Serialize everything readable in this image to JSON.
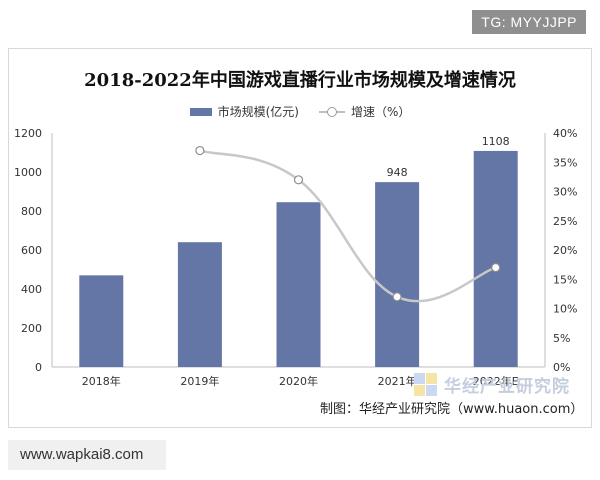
{
  "badge": {
    "text": "TG: MYYJJPP"
  },
  "chart_data": {
    "type": "bar",
    "title": "2018-2022年中国游戏直播行业市场规模及增速情况",
    "categories": [
      "2018年",
      "2019年",
      "2020年",
      "2021年",
      "2022年E"
    ],
    "series": [
      {
        "name": "市场规模(亿元)",
        "type": "bar",
        "axis": "left",
        "color": "#6376a6",
        "values": [
          470,
          640,
          845,
          948,
          1108
        ],
        "data_labels": [
          null,
          null,
          null,
          "948",
          "1108"
        ]
      },
      {
        "name": "增速（%）",
        "type": "line",
        "axis": "right",
        "color": "#c8c8c8",
        "values": [
          null,
          37,
          32,
          12,
          17
        ]
      }
    ],
    "ylim": [
      0,
      1200
    ],
    "yticks": [
      "0",
      "200",
      "400",
      "600",
      "800",
      "1000",
      "1200"
    ],
    "y2lim": [
      0,
      40
    ],
    "y2ticks": [
      "0%",
      "5%",
      "10%",
      "15%",
      "20%",
      "25%",
      "30%",
      "35%",
      "40%"
    ],
    "grid": false,
    "legend_position": "top-center"
  },
  "watermark": {
    "text": "华经产业研究院"
  },
  "source": {
    "text": "制图：华经产业研究院（www.huaon.com）"
  },
  "footer": {
    "url": "www.wapkai8.com"
  }
}
